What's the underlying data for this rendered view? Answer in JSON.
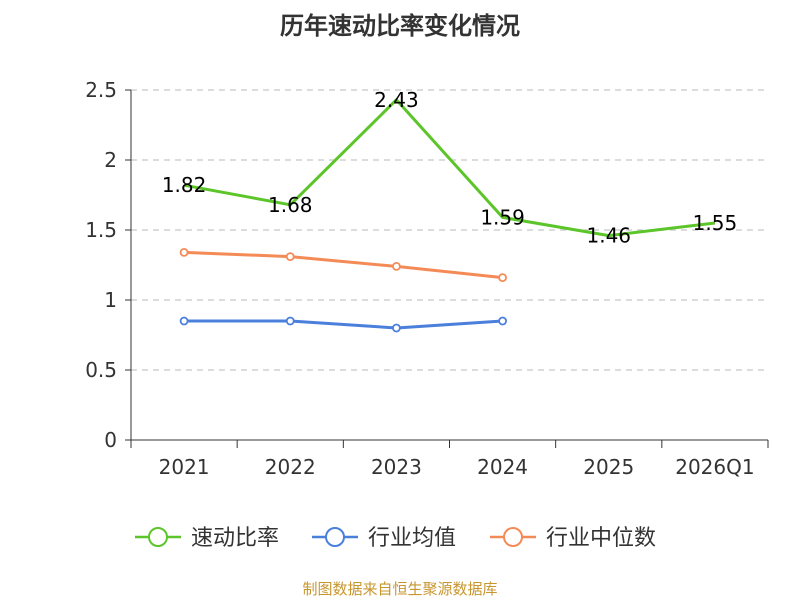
{
  "chart_data": {
    "type": "line",
    "title": "历年速动比率变化情况",
    "categories": [
      "2021",
      "2022",
      "2023",
      "2024",
      "2025",
      "2026Q1"
    ],
    "ylim": [
      0,
      2.5
    ],
    "yticks": [
      "0",
      "0.5",
      "1",
      "1.5",
      "2",
      "2.5"
    ],
    "grid": true,
    "legend_position": "bottom",
    "series": [
      {
        "name": "速动比率",
        "color": "#5cc52a",
        "values": [
          1.82,
          1.68,
          2.43,
          1.59,
          1.46,
          1.55
        ],
        "labels": [
          "1.82",
          "1.68",
          "2.43",
          "1.59",
          "1.46",
          "1.55"
        ],
        "marker": "none"
      },
      {
        "name": "行业均值",
        "color": "#4a7fdc",
        "values": [
          0.85,
          0.85,
          0.8,
          0.85,
          null,
          null
        ],
        "marker": "circle"
      },
      {
        "name": "行业中位数",
        "color": "#f48b57",
        "values": [
          1.34,
          1.31,
          1.24,
          1.16,
          null,
          null
        ],
        "marker": "circle"
      }
    ]
  },
  "source": "制图数据来自恒生聚源数据库"
}
